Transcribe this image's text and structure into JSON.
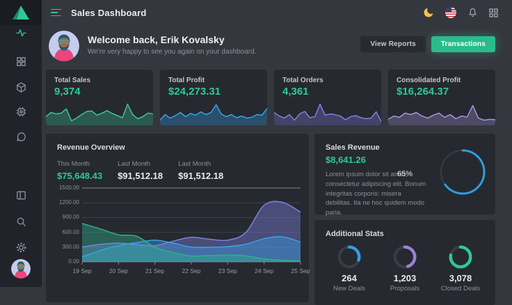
{
  "topbar": {
    "title": "Sales Dashboard",
    "icons": [
      "menu",
      "moon",
      "us-flag",
      "bell",
      "apps-grid"
    ]
  },
  "sidebar": {
    "icons": [
      "logo-triangle",
      "activity",
      "grid",
      "package",
      "cpu",
      "chat",
      "layout",
      "search",
      "settings",
      "user-avatar"
    ]
  },
  "welcome": {
    "title": "Welcome back, Erik Kovalsky",
    "subtitle": "We're very happy to see you again on your dashboard.",
    "view_reports_label": "View Reports",
    "transactions_label": "Transactions"
  },
  "stat_cards": [
    {
      "label": "Total Sales",
      "value": "9,374"
    },
    {
      "label": "Total Profit",
      "value": "$24,273.31"
    },
    {
      "label": "Total Orders",
      "value": "4,361"
    },
    {
      "label": "Consolidated Profit",
      "value": "$16,264.37"
    }
  ],
  "revenue_overview": {
    "title": "Revenue Overview",
    "stats": [
      {
        "label": "This Month",
        "value": "$75,648.43"
      },
      {
        "label": "Last Month",
        "value": "$91,512.18"
      },
      {
        "label": "Last Month",
        "value": "$91,512.18"
      }
    ]
  },
  "sales_revenue": {
    "title": "Sales Revenue",
    "value": "$8,641.26",
    "description": "Lorem ipsum dolor sit amet, consectetur adipiscing elit. Bonum integritas corporis: misera debilitas. Ita ne hoc quidem modo paria.",
    "donut_label": "65%"
  },
  "additional_stats": {
    "title": "Additional Stats",
    "items": [
      {
        "value": "264",
        "label": "New Deals"
      },
      {
        "value": "1,203",
        "label": "Proposals"
      },
      {
        "value": "3,078",
        "label": "Closed Deals"
      }
    ]
  },
  "colors": {
    "background": "#35373e",
    "sidebar": "#20232a",
    "panel": "#26292f",
    "accent_green": "#2fc996",
    "accent_blue": "#37a3e8",
    "accent_purple": "#7c81de",
    "accent_lavender": "#a793dd",
    "muted_text": "#8d919a"
  },
  "chart_data": [
    {
      "id": "spark-total-sales",
      "type": "area",
      "color": "#3cc39c",
      "values": [
        35,
        55,
        48,
        52,
        72,
        15,
        28,
        45,
        60,
        62,
        42,
        52,
        64,
        50,
        40,
        30,
        95,
        45,
        25,
        35,
        52,
        48
      ]
    },
    {
      "id": "spark-total-profit",
      "type": "area",
      "color": "#37a3e8",
      "values": [
        18,
        45,
        28,
        40,
        55,
        35,
        50,
        42,
        58,
        45,
        55,
        92,
        48,
        35,
        45,
        30,
        38,
        28,
        32,
        45,
        42,
        75
      ]
    },
    {
      "id": "spark-total-orders",
      "type": "area",
      "color": "#7c81de",
      "values": [
        55,
        38,
        28,
        45,
        18,
        48,
        60,
        30,
        35,
        95,
        42,
        48,
        44,
        38,
        20,
        35,
        40,
        30,
        25,
        28,
        58,
        12
      ]
    },
    {
      "id": "spark-consolidated-profit",
      "type": "area",
      "color": "#a793dd",
      "values": [
        22,
        38,
        32,
        52,
        45,
        55,
        38,
        28,
        42,
        52,
        32,
        45,
        25,
        38,
        33,
        88,
        28,
        18,
        22,
        20
      ]
    },
    {
      "id": "revenue-overview",
      "type": "area-multi",
      "title": "Revenue Overview",
      "x_labels": [
        "19 Sep",
        "20 Sep",
        "21 Sep",
        "22 Sep",
        "23 Sep",
        "24 Sep",
        "25 Sep"
      ],
      "y_ticks": [
        "1500.00",
        "1200.00",
        "900.00",
        "600.00",
        "300.00",
        "0.00"
      ],
      "ymax": 1500,
      "grid": true,
      "legend": false,
      "series": [
        {
          "name": "Purple",
          "color": "#7c81de",
          "values": [
            300,
            355,
            380,
            350,
            330,
            420,
            500,
            460,
            440,
            600,
            1150,
            1210,
            1010
          ]
        },
        {
          "name": "Blue",
          "color": "#37a3e8",
          "values": [
            100,
            230,
            330,
            390,
            440,
            380,
            300,
            295,
            310,
            360,
            470,
            510,
            400
          ]
        },
        {
          "name": "Green",
          "color": "#2eb08c",
          "values": [
            780,
            670,
            550,
            520,
            300,
            190,
            120,
            128,
            138,
            120,
            60,
            30,
            20
          ]
        }
      ]
    },
    {
      "id": "sales-revenue-donut",
      "type": "donut",
      "percent": 65,
      "color": "#2f9fe0",
      "stroke": 3,
      "track_width": 2,
      "label": "65%"
    },
    {
      "id": "new-deals-donut",
      "type": "donut",
      "percent": 30,
      "color": "#2f9fe0",
      "stroke": 4.5,
      "track_width": 4
    },
    {
      "id": "proposals-donut",
      "type": "donut",
      "percent": 45,
      "color": "#9b82d8",
      "stroke": 4.5,
      "track_width": 4
    },
    {
      "id": "closed-deals-donut",
      "type": "donut",
      "percent": 78,
      "color": "#2fc993",
      "stroke": 4.5,
      "track_width": 4
    }
  ]
}
